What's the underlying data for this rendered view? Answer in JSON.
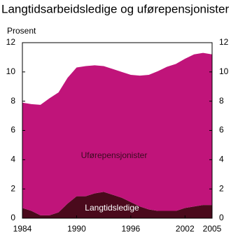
{
  "chart_data": {
    "type": "stacked_area",
    "title": "Langtidsarbeidsledige og uførepensjonister",
    "y_label": "Prosent",
    "x": [
      1984,
      1985,
      1986,
      1987,
      1988,
      1989,
      1990,
      1991,
      1992,
      1993,
      1994,
      1995,
      1996,
      1997,
      1998,
      1999,
      2000,
      2001,
      2002,
      2003,
      2004,
      2005
    ],
    "series": [
      {
        "name": "Langtidsledige",
        "color": "#4a0a1c",
        "values": [
          0.7,
          0.5,
          0.2,
          0.2,
          0.4,
          1.0,
          1.5,
          1.5,
          1.7,
          1.8,
          1.6,
          1.4,
          1.1,
          0.8,
          0.6,
          0.5,
          0.5,
          0.5,
          0.7,
          0.8,
          0.9,
          0.9
        ]
      },
      {
        "name": "Uførepensjonister",
        "color": "#c0147a",
        "values": [
          7.2,
          7.3,
          7.55,
          8.0,
          8.2,
          8.6,
          8.8,
          8.9,
          8.75,
          8.6,
          8.6,
          8.6,
          8.7,
          8.95,
          9.2,
          9.55,
          9.85,
          10.05,
          10.2,
          10.4,
          10.4,
          10.3
        ]
      }
    ],
    "xlim": [
      1984,
      2005
    ],
    "xticks": [
      1984,
      1990,
      1996,
      2002,
      2005
    ],
    "ylim": [
      0,
      12
    ],
    "yticks": [
      0,
      2,
      4,
      6,
      8,
      10,
      12
    ],
    "y2lim": [
      0,
      12
    ],
    "y2ticks": [
      0,
      2,
      4,
      6,
      8,
      10,
      12
    ],
    "grid": false
  }
}
